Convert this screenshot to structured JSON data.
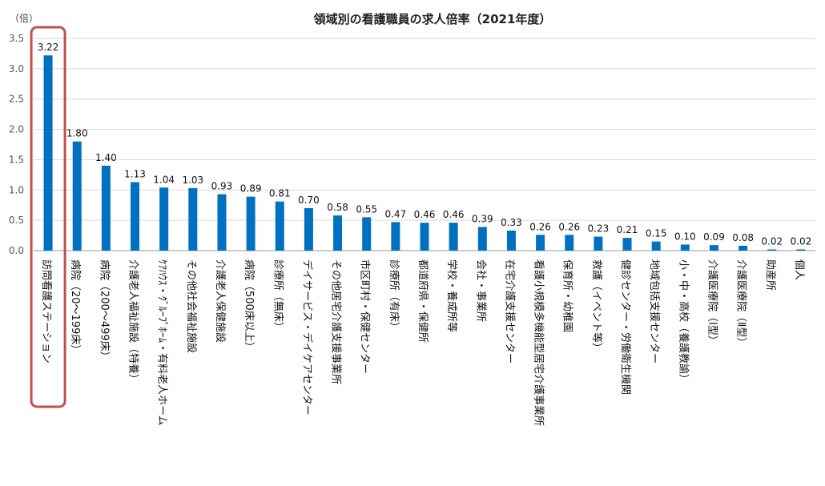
{
  "chart_data": {
    "type": "bar",
    "title": "領域別の看護職員の求人倍率（2021年度）",
    "ylabel": "（倍）",
    "xlabel": "",
    "ylim": [
      0,
      3.5
    ],
    "yticks": [
      0.0,
      0.5,
      1.0,
      1.5,
      2.0,
      2.5,
      3.0,
      3.5
    ],
    "ytick_labels": [
      "0.0",
      "0.5",
      "1.0",
      "1.5",
      "2.0",
      "2.5",
      "3.0",
      "3.5"
    ],
    "grid": true,
    "legend": "none",
    "categories": [
      "訪問看護ステーション",
      "病院（20～199床）",
      "病院（200～499床）",
      "介護老人福祉施設（特養）",
      "ｹｱﾊｳｽ・ｸﾞﾙｰﾌﾟﾎｰﾑ・有料老人ホーム",
      "その他社会福祉施設",
      "介護老人保健施設",
      "病院（500床以上）",
      "診療所（無床）",
      "デイサービス・デイケアセンター",
      "その他居宅介護支援事業所",
      "市区町村・保健センター",
      "診療所（有床）",
      "都道府県・保健所",
      "学校・養成所等",
      "会社・事業所",
      "在宅介護支援センター",
      "看護小規模多機能型居宅介護事業所",
      "保育所・幼稚園",
      "救護（イベント等）",
      "健診センター・労働衛生機関",
      "地域包括支援センター",
      "小・中・高校（養護教諭）",
      "介護医療院（Ⅰ型）",
      "介護医療院（Ⅱ型）",
      "助産所",
      "個人"
    ],
    "values": [
      3.22,
      1.8,
      1.4,
      1.13,
      1.04,
      1.03,
      0.93,
      0.89,
      0.81,
      0.7,
      0.58,
      0.55,
      0.47,
      0.46,
      0.46,
      0.39,
      0.33,
      0.26,
      0.26,
      0.23,
      0.21,
      0.15,
      0.1,
      0.09,
      0.08,
      0.02,
      0.02
    ],
    "value_labels": [
      "3.22",
      "1.80",
      "1.40",
      "1.13",
      "1.04",
      "1.03",
      "0.93",
      "0.89",
      "0.81",
      "0.70",
      "0.58",
      "0.55",
      "0.47",
      "0.46",
      "0.46",
      "0.39",
      "0.33",
      "0.26",
      "0.26",
      "0.23",
      "0.21",
      "0.15",
      "0.10",
      "0.09",
      "0.08",
      "0.02",
      "0.02"
    ],
    "bar_color": "#0070C0",
    "highlight_index": 0,
    "highlight_color": "#C0504D"
  }
}
